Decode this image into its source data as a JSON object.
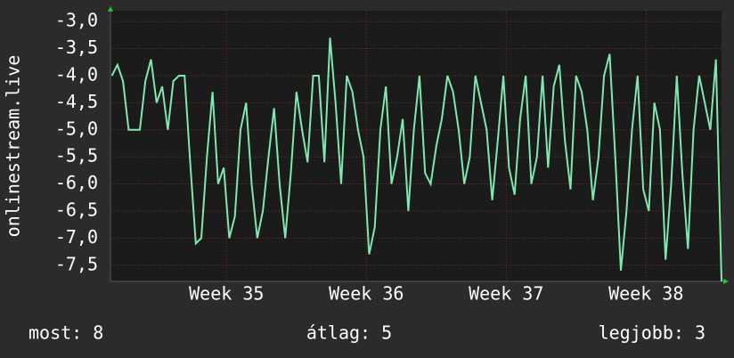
{
  "chart_data": {
    "type": "line",
    "y_label": "onlinestream.live",
    "x": [
      34.18,
      34.22,
      34.26,
      34.3,
      34.34,
      34.38,
      34.42,
      34.46,
      34.5,
      34.54,
      34.58,
      34.62,
      34.66,
      34.7,
      34.74,
      34.78,
      34.82,
      34.86,
      34.9,
      34.94,
      34.98,
      35.02,
      35.06,
      35.1,
      35.14,
      35.18,
      35.22,
      35.26,
      35.3,
      35.34,
      35.38,
      35.42,
      35.46,
      35.5,
      35.54,
      35.58,
      35.62,
      35.66,
      35.7,
      35.74,
      35.78,
      35.82,
      35.86,
      35.9,
      35.94,
      35.98,
      36.02,
      36.06,
      36.1,
      36.14,
      36.18,
      36.22,
      36.26,
      36.3,
      36.34,
      36.38,
      36.42,
      36.46,
      36.5,
      36.54,
      36.58,
      36.62,
      36.66,
      36.7,
      36.74,
      36.78,
      36.82,
      36.86,
      36.9,
      36.94,
      36.98,
      37.02,
      37.06,
      37.1,
      37.14,
      37.18,
      37.22,
      37.26,
      37.3,
      37.34,
      37.38,
      37.42,
      37.46,
      37.5,
      37.54,
      37.58,
      37.62,
      37.66,
      37.7,
      37.74,
      37.78,
      37.82,
      37.86,
      37.9,
      37.94,
      37.98,
      38.02,
      38.06,
      38.1,
      38.14,
      38.18,
      38.22,
      38.26,
      38.3,
      38.34,
      38.38,
      38.42,
      38.46,
      38.5,
      38.54
    ],
    "series": [
      {
        "name": "onlinestream.live",
        "color": "#7fe8b0",
        "values": [
          -4.0,
          -3.8,
          -4.1,
          -5.0,
          -5.0,
          -5.0,
          -4.1,
          -3.7,
          -4.5,
          -4.2,
          -5.0,
          -4.1,
          -4.0,
          -4.0,
          -5.6,
          -7.1,
          -7.0,
          -5.5,
          -4.3,
          -6.0,
          -5.7,
          -7.0,
          -6.6,
          -5.0,
          -4.5,
          -6.0,
          -7.0,
          -6.5,
          -5.5,
          -4.6,
          -6.0,
          -7.0,
          -5.8,
          -4.3,
          -5.0,
          -5.6,
          -4.0,
          -4.0,
          -5.6,
          -3.3,
          -4.5,
          -6.0,
          -4.0,
          -4.3,
          -5.0,
          -5.5,
          -7.3,
          -6.8,
          -5.0,
          -4.2,
          -6.0,
          -5.5,
          -4.8,
          -6.5,
          -5.0,
          -4.0,
          -5.8,
          -6.0,
          -5.3,
          -4.8,
          -4.0,
          -4.3,
          -5.0,
          -6.0,
          -5.5,
          -4.0,
          -4.5,
          -5.0,
          -6.3,
          -5.2,
          -4.0,
          -5.7,
          -6.2,
          -4.8,
          -4.0,
          -6.0,
          -5.5,
          -4.0,
          -5.7,
          -4.2,
          -3.8,
          -5.2,
          -6.1,
          -4.0,
          -4.3,
          -5.0,
          -6.3,
          -5.5,
          -4.0,
          -3.6,
          -5.5,
          -7.6,
          -6.5,
          -5.0,
          -4.0,
          -6.1,
          -6.5,
          -4.5,
          -5.0,
          -7.4,
          -6.0,
          -4.0,
          -5.8,
          -7.2,
          -5.0,
          -4.0,
          -4.5,
          -5.0,
          -3.7,
          -7.8
        ]
      }
    ],
    "xlim": [
      34.17,
      38.54
    ],
    "xticks": [
      {
        "value": 35,
        "label": "Week 35"
      },
      {
        "value": 36,
        "label": "Week 36"
      },
      {
        "value": 37,
        "label": "Week 37"
      },
      {
        "value": 38,
        "label": "Week 38"
      }
    ],
    "ylim": [
      -7.8,
      -2.8
    ],
    "yticks": [
      {
        "value": -3,
        "label": "-3,0"
      },
      {
        "value": -3.5,
        "label": "-3,5"
      },
      {
        "value": -4,
        "label": "-4,0"
      },
      {
        "value": -4.5,
        "label": "-4,5"
      },
      {
        "value": -5,
        "label": "-5,0"
      },
      {
        "value": -5.5,
        "label": "-5,5"
      },
      {
        "value": -6,
        "label": "-6,0"
      },
      {
        "value": -6.5,
        "label": "-6,5"
      },
      {
        "value": -7,
        "label": "-7,0"
      },
      {
        "value": -7.5,
        "label": "-7,5"
      }
    ],
    "grid": true,
    "footer": {
      "current": "most: 8",
      "average": "átlag: 5",
      "best": "legjobb: 3"
    }
  }
}
